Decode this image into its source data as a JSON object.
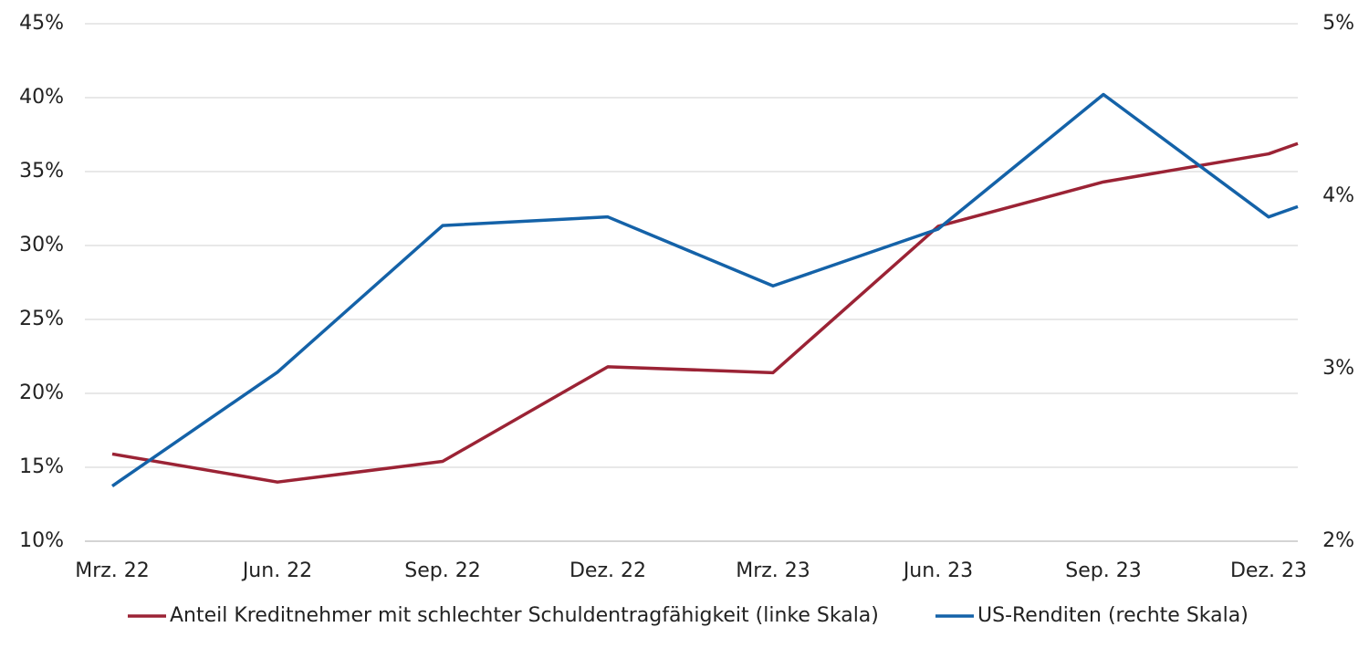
{
  "chart_data": {
    "type": "line",
    "categories": [
      "Mrz. 22",
      "Jun. 22",
      "Sep. 22",
      "Dez. 22",
      "Mrz. 23",
      "Jun. 23",
      "Sep. 23",
      "Dez. 23",
      null
    ],
    "series": [
      {
        "name": "Anteil Kreditnehmer mit schlechter Schuldentragfähigkeit (linke Skala)",
        "color": "#9b2335",
        "values": [
          15.9,
          14.0,
          15.4,
          21.8,
          21.4,
          31.3,
          34.3,
          36.2,
          36.9
        ]
      },
      {
        "name": "US-Renditen (rechte Skala)",
        "color": "#1462a8",
        "axis": "y2",
        "values": [
          2.32,
          2.98,
          3.83,
          3.88,
          3.48,
          3.81,
          4.59,
          3.88,
          3.94
        ]
      }
    ],
    "ylim": [
      10,
      45
    ],
    "yticks": [
      {
        "value": 10,
        "label": "10%"
      },
      {
        "value": 15,
        "label": "15%"
      },
      {
        "value": 20,
        "label": "20%"
      },
      {
        "value": 25,
        "label": "25%"
      },
      {
        "value": 30,
        "label": "30%"
      },
      {
        "value": 35,
        "label": "35%"
      },
      {
        "value": 40,
        "label": "40%"
      },
      {
        "value": 45,
        "label": "45%"
      }
    ],
    "y2lim": [
      2,
      5
    ],
    "y2ticks": [
      {
        "value": 2,
        "label": "2%"
      },
      {
        "value": 3,
        "label": "3%"
      },
      {
        "value": 4,
        "label": "4%"
      },
      {
        "value": 5,
        "label": "5%"
      }
    ],
    "grid": true,
    "legend": "bottom"
  }
}
